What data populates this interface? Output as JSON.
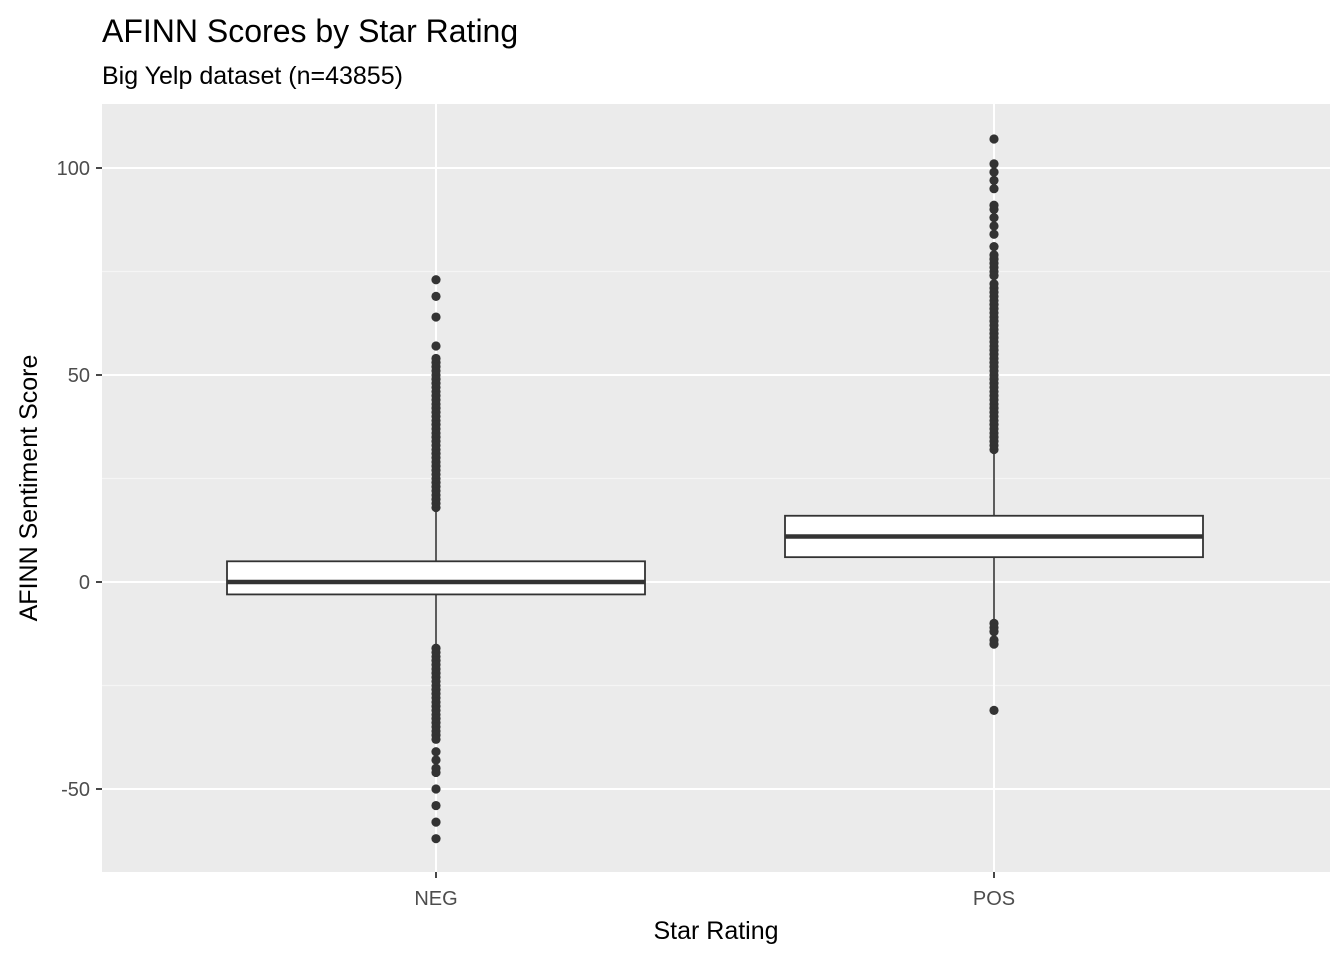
{
  "chart_data": {
    "type": "boxplot",
    "title": "AFINN Scores by Star Rating",
    "subtitle": "Big Yelp dataset (n=43855)",
    "xlabel": "Star Rating",
    "ylabel": "AFINN Sentiment Score",
    "ylim": [
      -70,
      115
    ],
    "y_ticks": [
      -50,
      0,
      50,
      100
    ],
    "y_tick_labels": [
      "-50",
      "0",
      "50",
      "100"
    ],
    "categories": [
      "NEG",
      "POS"
    ],
    "grid": true,
    "boxes": [
      {
        "category": "NEG",
        "q1": -3,
        "median": 0,
        "q3": 5,
        "whisker_low": -15,
        "whisker_high": 17,
        "outliers": [
          18,
          19,
          20,
          21,
          22,
          23,
          24,
          25,
          26,
          27,
          28,
          29,
          30,
          31,
          32,
          33,
          34,
          35,
          36,
          37,
          38,
          39,
          40,
          41,
          42,
          43,
          44,
          45,
          46,
          47,
          48,
          49,
          50,
          51,
          52,
          53,
          54,
          57,
          64,
          69,
          73,
          -16,
          -17,
          -18,
          -19,
          -20,
          -21,
          -22,
          -23,
          -24,
          -25,
          -26,
          -27,
          -28,
          -29,
          -30,
          -31,
          -32,
          -33,
          -34,
          -35,
          -36,
          -37,
          -38,
          -41,
          -43,
          -45,
          -46,
          -50,
          -54,
          -58,
          -62
        ]
      },
      {
        "category": "POS",
        "q1": 6,
        "median": 11,
        "q3": 16,
        "whisker_low": -9,
        "whisker_high": 31,
        "outliers": [
          32,
          33,
          34,
          35,
          36,
          37,
          38,
          39,
          40,
          41,
          42,
          43,
          44,
          45,
          46,
          47,
          48,
          49,
          50,
          51,
          52,
          53,
          54,
          55,
          56,
          57,
          58,
          59,
          60,
          61,
          62,
          63,
          64,
          65,
          66,
          67,
          68,
          69,
          70,
          71,
          72,
          74,
          75,
          76,
          77,
          78,
          79,
          81,
          84,
          86,
          88,
          90,
          91,
          95,
          97,
          99,
          101,
          107,
          -10,
          -11,
          -12,
          -14,
          -15,
          -31
        ]
      }
    ]
  },
  "colors": {
    "panel_background": "#ebebeb",
    "grid_major": "#ffffff",
    "grid_minor": "#f5f5f5",
    "box_fill": "#ffffff",
    "box_stroke": "#333333",
    "point": "#333333",
    "tick_text": "#4d4d4d",
    "text": "#000000"
  }
}
